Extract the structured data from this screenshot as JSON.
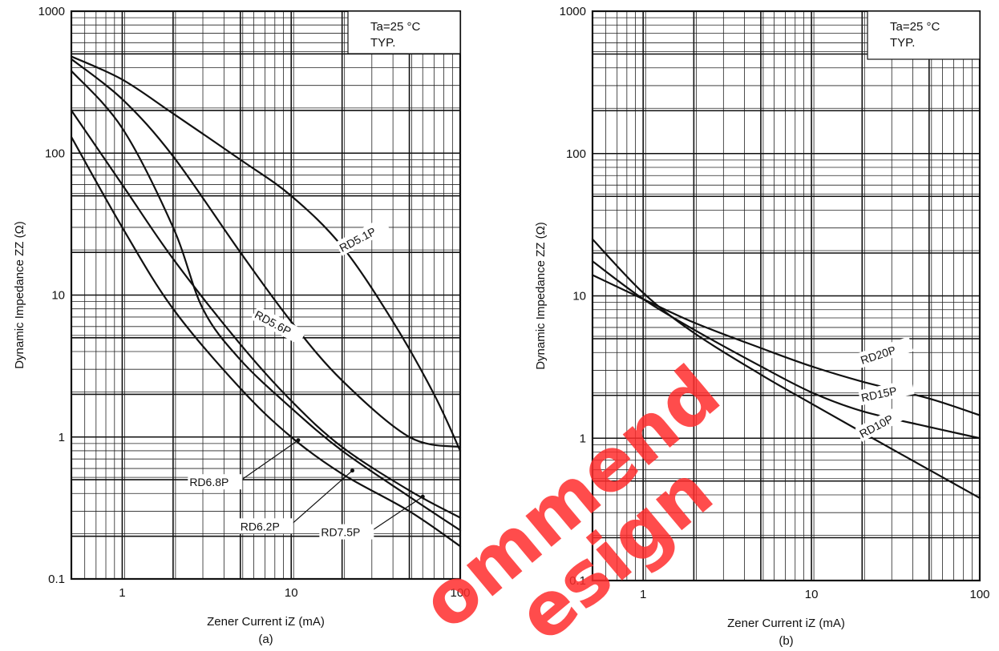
{
  "watermark": {
    "line1": "ommend",
    "line2": "esign",
    "color": "#ff2d2d"
  },
  "chart_data": [
    {
      "type": "line",
      "panel_caption": "(a)",
      "xlabel": "Zener Current iZ (mA)",
      "ylabel": "Dynamic Impedance ZZ (Ω)",
      "x_scale": "log",
      "y_scale": "log",
      "xlim": [
        0.5,
        100
      ],
      "ylim": [
        0.1,
        1000
      ],
      "xticks": [
        "1",
        "10",
        "100"
      ],
      "yticks": [
        "0.1",
        "1",
        "10",
        "100",
        "1000"
      ],
      "grid": true,
      "condition": {
        "line1": "Ta=25 °C",
        "line2": "TYP."
      },
      "series": [
        {
          "name": "RD5.1P",
          "x": [
            0.5,
            1,
            2,
            5,
            10,
            20,
            40,
            70,
            100
          ],
          "y": [
            480,
            330,
            190,
            90,
            50,
            22,
            6.5,
            2,
            0.8
          ]
        },
        {
          "name": "RD5.6P",
          "x": [
            0.5,
            1,
            2,
            5,
            10,
            20,
            50,
            100
          ],
          "y": [
            460,
            240,
            95,
            20,
            6.5,
            2.5,
            1.0,
            0.85
          ]
        },
        {
          "name": "RD6.2P",
          "x": [
            0.5,
            1,
            2,
            3,
            5,
            10,
            20,
            50,
            100
          ],
          "y": [
            380,
            150,
            30,
            8,
            3.5,
            1.6,
            0.8,
            0.38,
            0.22
          ]
        },
        {
          "name": "RD6.8P",
          "x": [
            0.5,
            1,
            2,
            5,
            10,
            20,
            50,
            100
          ],
          "y": [
            200,
            60,
            18,
            4.5,
            1.8,
            0.85,
            0.42,
            0.27
          ]
        },
        {
          "name": "RD7.5P",
          "x": [
            0.5,
            1,
            2,
            5,
            10,
            20,
            50,
            100
          ],
          "y": [
            130,
            30,
            8,
            2.2,
            1.0,
            0.55,
            0.3,
            0.17
          ]
        }
      ],
      "annotations": [
        {
          "text": "RD5.1P",
          "x": 20,
          "y": 20
        },
        {
          "text": "RD5.6P",
          "x": 6,
          "y": 7
        },
        {
          "text": "RD6.8P",
          "x": 2.5,
          "y": 0.45,
          "arrow_x": 11,
          "arrow_y": 0.95
        },
        {
          "text": "RD6.2P",
          "x": 5,
          "y": 0.22,
          "arrow_x": 23,
          "arrow_y": 0.58
        },
        {
          "text": "RD7.5P",
          "x": 15,
          "y": 0.2,
          "arrow_x": 60,
          "arrow_y": 0.38
        }
      ]
    },
    {
      "type": "line",
      "panel_caption": "(b)",
      "xlabel": "Zener Current iZ (mA)",
      "ylabel": "Dynamic Impedance ZZ (Ω)",
      "x_scale": "log",
      "y_scale": "log",
      "xlim": [
        0.5,
        100
      ],
      "ylim": [
        0.1,
        1000
      ],
      "xticks": [
        "1",
        "10",
        "100"
      ],
      "yticks": [
        "0.1",
        "1",
        "10",
        "100",
        "1000"
      ],
      "grid": true,
      "condition": {
        "line1": "Ta=25 °C",
        "line2": "TYP."
      },
      "series": [
        {
          "name": "RD20P",
          "x": [
            0.5,
            1,
            2,
            5,
            10,
            20,
            50,
            100
          ],
          "y": [
            14,
            9.5,
            6.5,
            4.3,
            3.2,
            2.5,
            1.9,
            1.45
          ]
        },
        {
          "name": "RD15P",
          "x": [
            0.5,
            1,
            2,
            5,
            10,
            20,
            50,
            100
          ],
          "y": [
            17.5,
            9.5,
            5.8,
            3.2,
            2.1,
            1.55,
            1.2,
            1.0
          ]
        },
        {
          "name": "RD10P",
          "x": [
            0.5,
            1,
            2,
            5,
            10,
            20,
            50,
            100
          ],
          "y": [
            25,
            10.5,
            5.5,
            2.8,
            1.75,
            1.1,
            0.6,
            0.38
          ]
        }
      ],
      "annotations": [
        {
          "text": "RD20P",
          "x": 20,
          "y": 3.3
        },
        {
          "text": "RD15P",
          "x": 20,
          "y": 1.8
        },
        {
          "text": "RD10P",
          "x": 20,
          "y": 1.0
        }
      ]
    }
  ]
}
